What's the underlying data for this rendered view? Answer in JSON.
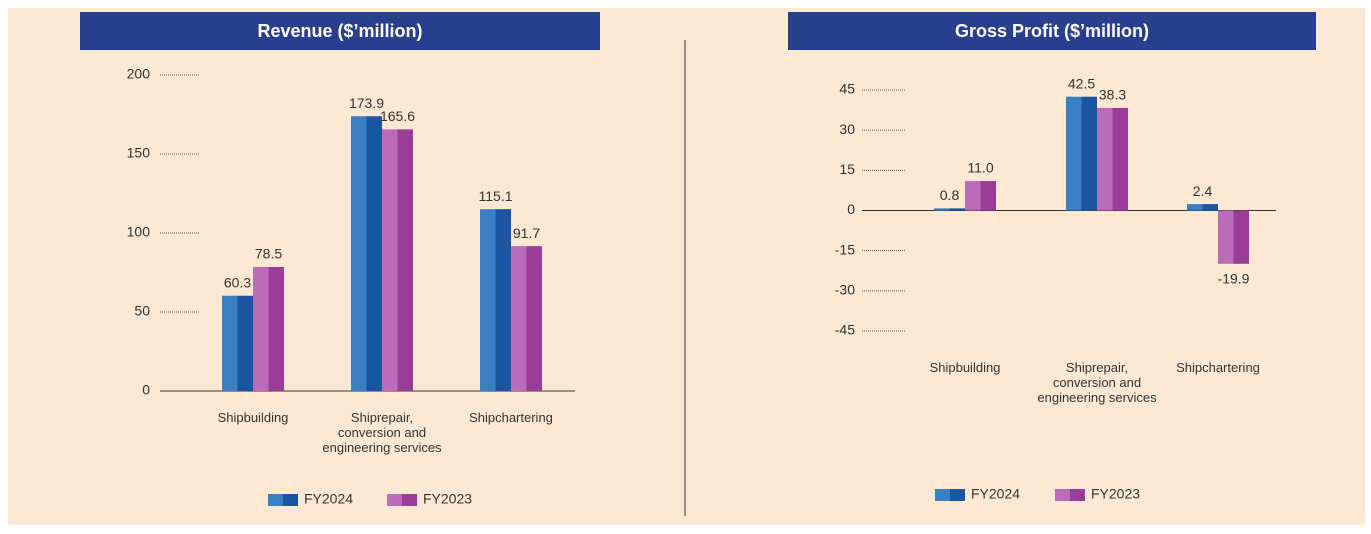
{
  "chart_data": [
    {
      "type": "bar",
      "title": "Revenue ($’million)",
      "categories": [
        "Shipbuilding",
        "Shiprepair, conversion and engineering services",
        "Shipchartering"
      ],
      "series": [
        {
          "name": "FY2024",
          "color": [
            "#3a7fc2",
            "#1c56a3"
          ],
          "values": [
            60.3,
            173.9,
            115.1
          ],
          "value_labels": [
            "60.3",
            "173.9",
            "115.1"
          ]
        },
        {
          "name": "FY2023",
          "color": [
            "#bb6cb8",
            "#9a3d98"
          ],
          "values": [
            78.5,
            165.6,
            91.7
          ],
          "value_labels": [
            "78.5",
            "165.6",
            "91.7"
          ]
        }
      ],
      "ylim": [
        0,
        200
      ],
      "yticks": [
        0,
        50,
        100,
        150,
        200
      ],
      "legend": "bottom"
    },
    {
      "type": "bar",
      "title": "Gross Profit ($’million)",
      "categories": [
        "Shipbuilding",
        "Shiprepair, conversion and engineering services",
        "Shipchartering"
      ],
      "series": [
        {
          "name": "FY2024",
          "color": [
            "#3a7fc2",
            "#1c56a3"
          ],
          "values": [
            0.8,
            42.5,
            2.4
          ],
          "value_labels": [
            "0.8",
            "42.5",
            "2.4"
          ]
        },
        {
          "name": "FY2023",
          "color": [
            "#bb6cb8",
            "#9a3d98"
          ],
          "values": [
            11.0,
            38.3,
            -19.9
          ],
          "value_labels": [
            "11.0",
            "38.3",
            "-19.9"
          ]
        }
      ],
      "ylim": [
        -45,
        45
      ],
      "yticks": [
        -45,
        -30,
        -15,
        0,
        15,
        30,
        45
      ],
      "legend": "bottom"
    }
  ]
}
